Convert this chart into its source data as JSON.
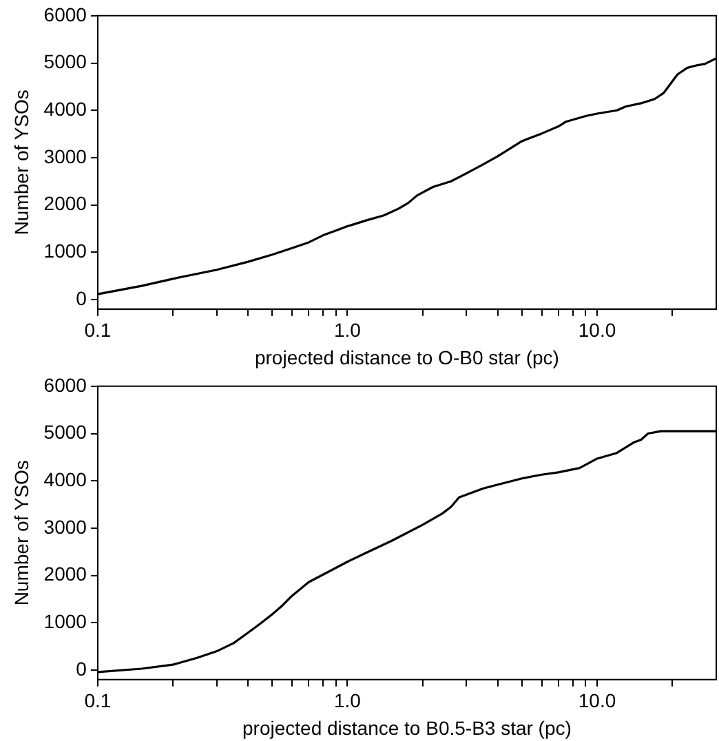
{
  "chart_data": [
    {
      "type": "line",
      "xlabel": "projected distance to O-B0 star (pc)",
      "ylabel": "Number of YSOs",
      "log": "x",
      "grid": false,
      "legend": false,
      "marker": "none",
      "color": "#000000",
      "xlim": [
        0.1,
        30
      ],
      "ylim": [
        -200,
        6000
      ],
      "xticks": [
        0.1,
        {
          "value": 0.2,
          "label": null
        },
        {
          "value": 0.3,
          "label": null
        },
        {
          "value": 0.4,
          "label": null
        },
        {
          "value": 0.5,
          "label": null
        },
        {
          "value": 0.6,
          "label": null
        },
        {
          "value": 0.7,
          "label": null
        },
        {
          "value": 0.8,
          "label": null
        },
        {
          "value": 0.9,
          "label": null
        },
        {
          "value": 1,
          "label": "1.0"
        },
        {
          "value": 2,
          "label": null
        },
        {
          "value": 3,
          "label": null
        },
        {
          "value": 4,
          "label": null
        },
        {
          "value": 5,
          "label": null
        },
        {
          "value": 6,
          "label": null
        },
        {
          "value": 7,
          "label": null
        },
        {
          "value": 8,
          "label": null
        },
        {
          "value": 9,
          "label": null
        },
        {
          "value": 10,
          "label": "10.0"
        },
        {
          "value": 20,
          "label": null
        }
      ],
      "yticks": [
        0,
        1000,
        2000,
        3000,
        4000,
        5000,
        6000
      ],
      "x": [
        0.1,
        0.15,
        0.2,
        0.3,
        0.4,
        0.5,
        0.6,
        0.7,
        0.8,
        0.9,
        1.0,
        1.2,
        1.4,
        1.6,
        1.75,
        1.9,
        2.2,
        2.6,
        3.0,
        3.5,
        4.0,
        5.0,
        6.0,
        7.0,
        7.5,
        9.0,
        10,
        12,
        13,
        15,
        17,
        18.5,
        20,
        21,
        23,
        25,
        27,
        30
      ],
      "values": [
        115,
        290,
        440,
        630,
        800,
        950,
        1090,
        1210,
        1360,
        1460,
        1550,
        1680,
        1780,
        1920,
        2040,
        2200,
        2380,
        2500,
        2670,
        2860,
        3030,
        3350,
        3510,
        3660,
        3760,
        3880,
        3930,
        4000,
        4080,
        4150,
        4240,
        4370,
        4610,
        4760,
        4900,
        4950,
        4980,
        5100
      ]
    },
    {
      "type": "line",
      "xlabel": "projected distance to B0.5-B3 star (pc)",
      "ylabel": "Number of YSOs",
      "log": "x",
      "grid": false,
      "legend": false,
      "marker": "none",
      "color": "#000000",
      "xlim": [
        0.1,
        30
      ],
      "ylim": [
        -200,
        6000
      ],
      "xticks": [
        0.1,
        {
          "value": 0.2,
          "label": null
        },
        {
          "value": 0.3,
          "label": null
        },
        {
          "value": 0.4,
          "label": null
        },
        {
          "value": 0.5,
          "label": null
        },
        {
          "value": 0.6,
          "label": null
        },
        {
          "value": 0.7,
          "label": null
        },
        {
          "value": 0.8,
          "label": null
        },
        {
          "value": 0.9,
          "label": null
        },
        {
          "value": 1,
          "label": "1.0"
        },
        {
          "value": 2,
          "label": null
        },
        {
          "value": 3,
          "label": null
        },
        {
          "value": 4,
          "label": null
        },
        {
          "value": 5,
          "label": null
        },
        {
          "value": 6,
          "label": null
        },
        {
          "value": 7,
          "label": null
        },
        {
          "value": 8,
          "label": null
        },
        {
          "value": 9,
          "label": null
        },
        {
          "value": 10,
          "label": "10.0"
        },
        {
          "value": 20,
          "label": null
        }
      ],
      "yticks": [
        0,
        1000,
        2000,
        3000,
        4000,
        5000,
        6000
      ],
      "x": [
        0.1,
        0.15,
        0.2,
        0.25,
        0.3,
        0.35,
        0.4,
        0.45,
        0.5,
        0.55,
        0.6,
        0.7,
        0.8,
        1.0,
        1.2,
        1.5,
        2.0,
        2.4,
        2.6,
        2.8,
        3.0,
        3.5,
        4.0,
        5.0,
        6.0,
        7.0,
        8.5,
        9.0,
        10,
        12,
        14,
        15,
        16,
        18,
        30
      ],
      "values": [
        -40,
        30,
        115,
        260,
        400,
        570,
        790,
        990,
        1180,
        1370,
        1570,
        1860,
        2020,
        2290,
        2490,
        2730,
        3070,
        3310,
        3450,
        3650,
        3710,
        3840,
        3920,
        4050,
        4130,
        4180,
        4270,
        4340,
        4470,
        4590,
        4810,
        4870,
        5000,
        5050,
        5050
      ]
    }
  ]
}
